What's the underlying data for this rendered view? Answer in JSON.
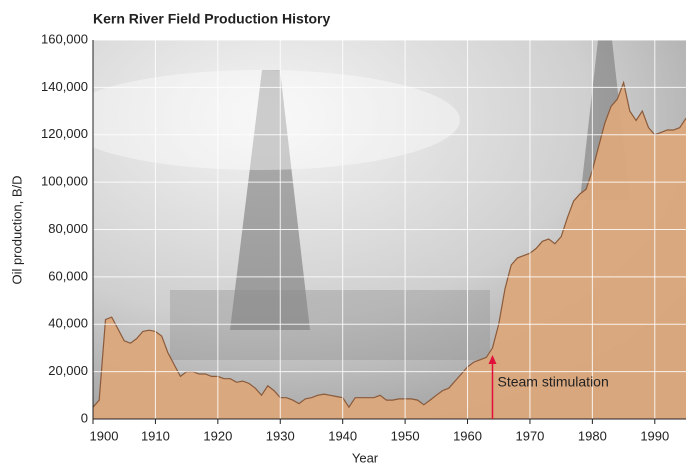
{
  "chart_data": {
    "type": "area",
    "title": "Kern River Field Production History",
    "xlabel": "Year",
    "ylabel": "Oil production, B/D",
    "x": [
      1900,
      1901,
      1902,
      1903,
      1904,
      1905,
      1906,
      1907,
      1908,
      1909,
      1910,
      1911,
      1912,
      1913,
      1914,
      1915,
      1916,
      1917,
      1918,
      1919,
      1920,
      1921,
      1922,
      1923,
      1924,
      1925,
      1926,
      1927,
      1928,
      1929,
      1930,
      1931,
      1932,
      1933,
      1934,
      1935,
      1936,
      1937,
      1938,
      1939,
      1940,
      1941,
      1942,
      1943,
      1944,
      1945,
      1946,
      1947,
      1948,
      1949,
      1950,
      1951,
      1952,
      1953,
      1954,
      1955,
      1956,
      1957,
      1958,
      1959,
      1960,
      1961,
      1962,
      1963,
      1964,
      1965,
      1966,
      1967,
      1968,
      1969,
      1970,
      1971,
      1972,
      1973,
      1974,
      1975,
      1976,
      1977,
      1978,
      1979,
      1980,
      1981,
      1982,
      1983,
      1984,
      1985,
      1986,
      1987,
      1988,
      1989,
      1990,
      1991,
      1992,
      1993,
      1994,
      1995
    ],
    "values": [
      5000,
      8000,
      42000,
      43000,
      38000,
      33000,
      32000,
      34000,
      37000,
      37500,
      37000,
      35000,
      28000,
      23000,
      18000,
      20000,
      20000,
      19000,
      19000,
      18000,
      18000,
      17000,
      17000,
      15500,
      16000,
      15000,
      13000,
      10000,
      14000,
      12000,
      9000,
      9000,
      8000,
      6500,
      8500,
      9000,
      10000,
      10500,
      10000,
      9500,
      9000,
      5000,
      9000,
      9000,
      9000,
      9000,
      10000,
      8000,
      8000,
      8500,
      8500,
      8500,
      8000,
      6000,
      8000,
      10000,
      12000,
      13000,
      16000,
      19000,
      22000,
      24000,
      25000,
      26000,
      30000,
      40000,
      55000,
      65000,
      68000,
      69000,
      70000,
      72000,
      75000,
      76000,
      74000,
      77000,
      85000,
      92000,
      95000,
      97000,
      105000,
      115000,
      125000,
      132000,
      135000,
      142000,
      130000,
      126000,
      130000,
      123000,
      120000,
      121000,
      122000,
      122000,
      123000,
      127000
    ],
    "color": "#dca87c",
    "edge_color": "#8a5a3a",
    "xlim": [
      1900,
      1995
    ],
    "xticks": [
      1900,
      1910,
      1920,
      1930,
      1940,
      1950,
      1960,
      1970,
      1980,
      1990
    ],
    "ylim": [
      0,
      160000
    ],
    "yticks": [
      0,
      {
        "value": 20000,
        "label": "20,000"
      },
      {
        "value": 40000,
        "label": "40,000"
      },
      {
        "value": 60000,
        "label": "60,000"
      },
      {
        "value": 80000,
        "label": "80,000"
      },
      {
        "value": 100000,
        "label": "100,000"
      },
      {
        "value": 120000,
        "label": "120,000"
      },
      {
        "value": 140000,
        "label": "140,000"
      },
      {
        "value": 160000,
        "label": "160,000"
      }
    ],
    "grid": true,
    "annotation": {
      "text": "Steam stimulation",
      "x": 1964,
      "y": 27000,
      "color": "#e0103a"
    }
  }
}
